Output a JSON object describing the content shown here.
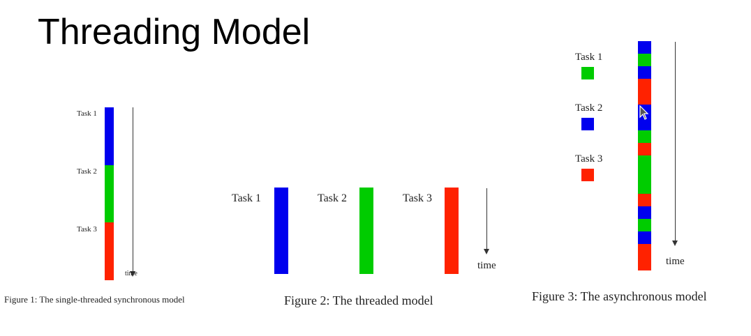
{
  "title": "Threading Model",
  "colors": {
    "task1": "#0000ee",
    "task2": "#00cc00",
    "task3": "#ff2200"
  },
  "figure1": {
    "caption": "Figure 1: The single-threaded synchronous model",
    "task_labels": [
      "Task 1",
      "Task 2",
      "Task 3"
    ],
    "time_label": "time",
    "sequence": [
      "task1",
      "task2",
      "task3"
    ]
  },
  "figure2": {
    "caption": "Figure 2: The threaded model",
    "task_labels": [
      "Task 1",
      "Task 2",
      "Task 3"
    ],
    "time_label": "time",
    "threads": [
      "task1",
      "task2",
      "task3"
    ]
  },
  "figure3": {
    "caption": "Figure 3: The asynchronous model",
    "legend_labels": [
      "Task 1",
      "Task 2",
      "Task 3"
    ],
    "time_label": "time",
    "sequence": [
      {
        "task": "task3",
        "units": 0
      },
      {
        "task": "task1",
        "units": 1
      },
      {
        "task": "task2",
        "units": 1
      },
      {
        "task": "task1",
        "units": 1
      },
      {
        "task": "task3",
        "units": 2
      },
      {
        "task": "task1",
        "units": 2
      },
      {
        "task": "task2",
        "units": 1
      },
      {
        "task": "task3",
        "units": 1
      },
      {
        "task": "task2",
        "units": 3
      },
      {
        "task": "task3",
        "units": 1
      },
      {
        "task": "task1",
        "units": 1
      },
      {
        "task": "task2",
        "units": 1
      },
      {
        "task": "task1",
        "units": 1
      },
      {
        "task": "task3",
        "units": 2
      }
    ]
  }
}
